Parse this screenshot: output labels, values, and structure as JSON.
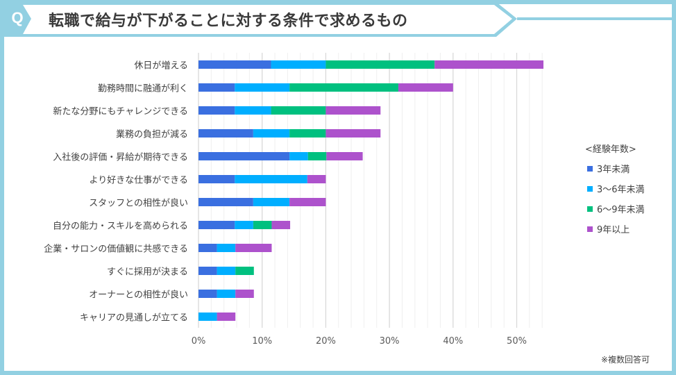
{
  "header": {
    "q": "Q",
    "title": "転職で給与が下がることに対する条件で求めるもの"
  },
  "note": "※複数回答可",
  "colors": {
    "frame": "#92d0e2",
    "series": [
      "#3a6fe0",
      "#00aeff",
      "#00c07f",
      "#ad52cc"
    ]
  },
  "chart_data": {
    "type": "bar",
    "orientation": "horizontal",
    "stacked": true,
    "title": "転職で給与が下がることに対する条件で求めるもの",
    "categories": [
      "休日が増える",
      "勤務時間に融通が利く",
      "新たな分野にもチャレンジできる",
      "業務の負担が減る",
      "入社後の評価・昇給が期待できる",
      "より好きな仕事ができる",
      "スタッフとの相性が良い",
      "自分の能力・スキルを高められる",
      "企業・サロンの価値観に共感できる",
      "すぐに採用が決まる",
      "オーナーとの相性が良い",
      "キャリアの見通しが立てる"
    ],
    "legend_title": "<経験年数>",
    "legend_position": "right",
    "series": [
      {
        "name": "3年未満",
        "values": [
          11.4,
          5.7,
          5.7,
          8.6,
          14.3,
          5.7,
          8.6,
          5.7,
          2.9,
          2.9,
          2.9,
          0
        ]
      },
      {
        "name": "3〜6年未満",
        "values": [
          8.6,
          8.6,
          5.7,
          5.7,
          2.9,
          11.4,
          5.7,
          2.9,
          2.9,
          2.9,
          2.9,
          2.9
        ]
      },
      {
        "name": "6〜9年未満",
        "values": [
          17.1,
          17.1,
          8.6,
          5.7,
          2.9,
          0,
          0,
          2.9,
          0,
          2.9,
          0,
          0
        ]
      },
      {
        "name": "9年以上",
        "values": [
          17.1,
          8.6,
          8.6,
          8.6,
          5.7,
          2.9,
          5.7,
          2.9,
          5.7,
          0,
          2.9,
          2.9
        ]
      }
    ],
    "xlim": [
      0,
      54
    ],
    "xticks": [
      "0%",
      "10%",
      "20%",
      "30%",
      "40%",
      "50%"
    ],
    "grid": true
  }
}
